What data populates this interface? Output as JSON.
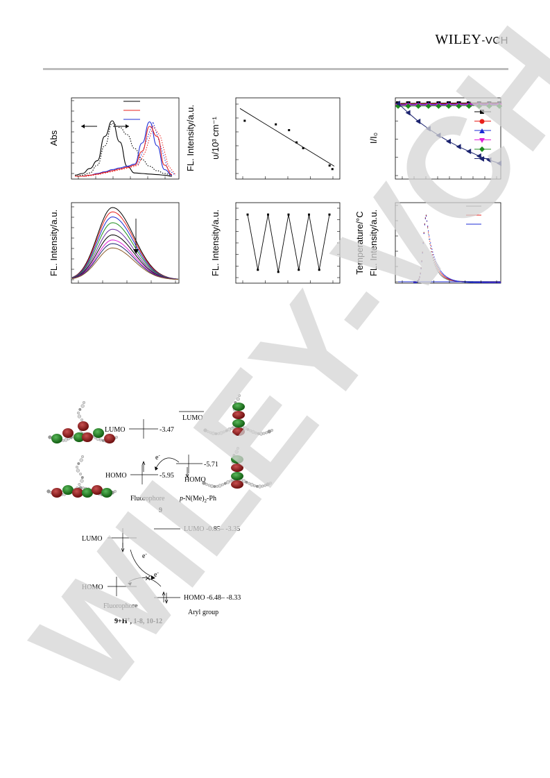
{
  "header": {
    "publisher_main": "WILEY",
    "publisher_suffix": "-VCH"
  },
  "watermark": "WILEY-VCH",
  "chart_data": [
    {
      "type": "line",
      "ylabel": "Abs",
      "legend_colors": [
        "#000000",
        "#e8201c",
        "#1c2bd4"
      ],
      "series": [
        {
          "color": "#000000",
          "style": "solid",
          "values": [
            0.02,
            0.05,
            0.14,
            0.28,
            0.72,
            1.0,
            0.62,
            0.18,
            0.06,
            0.05,
            0.04,
            0.03,
            0.02,
            0.0
          ]
        },
        {
          "color": "#000000",
          "style": "dotted",
          "values": [
            0.0,
            0.02,
            0.06,
            0.2,
            0.55,
            0.95,
            0.88,
            0.75,
            0.5,
            0.3,
            0.18,
            0.1,
            0.05,
            0.02
          ]
        },
        {
          "color": "#1c2bd4",
          "style": "solid",
          "values": [
            0.0,
            0.0,
            0.02,
            0.05,
            0.08,
            0.12,
            0.15,
            0.18,
            0.22,
            0.6,
            0.98,
            0.55,
            0.12,
            0.02
          ]
        },
        {
          "color": "#e8201c",
          "style": "solid",
          "values": [
            0.0,
            0.0,
            0.02,
            0.04,
            0.07,
            0.1,
            0.13,
            0.16,
            0.2,
            0.45,
            0.9,
            0.72,
            0.2,
            0.03
          ]
        }
      ]
    },
    {
      "type": "scatter",
      "ylabel": "FL. Intensity/a.u.",
      "ylabel2": "υ/10³ cm⁻¹",
      "x": [
        0.05,
        0.38,
        0.52,
        0.6,
        0.67,
        0.95,
        0.98
      ],
      "y": [
        0.75,
        0.7,
        0.62,
        0.45,
        0.37,
        0.13,
        0.08
      ],
      "fit": [
        [
          0.0,
          0.92
        ],
        [
          1.0,
          0.12
        ]
      ]
    },
    {
      "type": "line",
      "ylabel": "I/I₀",
      "series_colors": [
        "#000000",
        "#e8201c",
        "#1c2bd4",
        "#e020d8",
        "#1c8c1c",
        "#1c2470"
      ],
      "decay_series": {
        "color": "#1c2470",
        "x": [
          0.0,
          0.1,
          0.2,
          0.3,
          0.4,
          0.5,
          0.6,
          0.7,
          0.8,
          0.9,
          1.0
        ],
        "y": [
          1.0,
          0.86,
          0.73,
          0.62,
          0.52,
          0.43,
          0.35,
          0.28,
          0.21,
          0.15,
          0.1
        ]
      }
    },
    {
      "type": "line",
      "ylabel": "FL. Intensity/a.u.",
      "peak_heights": [
        1.0,
        0.94,
        0.87,
        0.79,
        0.7,
        0.62,
        0.55,
        0.5,
        0.44
      ],
      "colors": [
        "#000000",
        "#e8201c",
        "#1c2bd4",
        "#1c8c1c",
        "#6a2ca0",
        "#000000",
        "#e020d8",
        "#1c2470",
        "#8a5a2a"
      ]
    },
    {
      "type": "line",
      "ylabel": "FL. Intensity/a.u.",
      "ylabel2": "Temperature/°C",
      "x": [
        0,
        1,
        2,
        3,
        4,
        5,
        6,
        7,
        8
      ],
      "y": [
        0.92,
        0.14,
        0.92,
        0.11,
        0.92,
        0.14,
        0.92,
        0.14,
        0.92
      ]
    },
    {
      "type": "line",
      "ylabel": "FL. Intensity/a.u.",
      "legend_colors": [
        "#6a6a6a",
        "#e8201c",
        "#1c2bd4"
      ]
    }
  ],
  "diagram_top": {
    "lumo_left": "LUMO",
    "lumo_left_value": "-3.47",
    "lumo_right": "LUMO",
    "homo_left": "HOMO",
    "homo_left_value": "-5.95",
    "homo_right": "HOMO",
    "homo_right_value": "-5.71",
    "electron": "e",
    "electron_sup": "-",
    "fluorophore": "Fluorophore",
    "donor_prefix": "p",
    "donor_rest": "-N(Me)",
    "donor_sub": "2",
    "donor_tail": "-Ph",
    "compound": "9"
  },
  "diagram_bottom": {
    "lumo_left": "LUMO",
    "lumo_right": "LUMO -0.85– -3.35",
    "homo_left": "HOMO",
    "homo_right": "HOMO -6.48– -8.33",
    "electron1": "e",
    "electron2": "e",
    "electron_sup": "-",
    "fluorophore": "Fluorophore",
    "aryl": "Aryl group",
    "compounds_pre": "9+H",
    "compounds_sup": "+",
    "compounds_post": ", 1-8, 10-12"
  }
}
